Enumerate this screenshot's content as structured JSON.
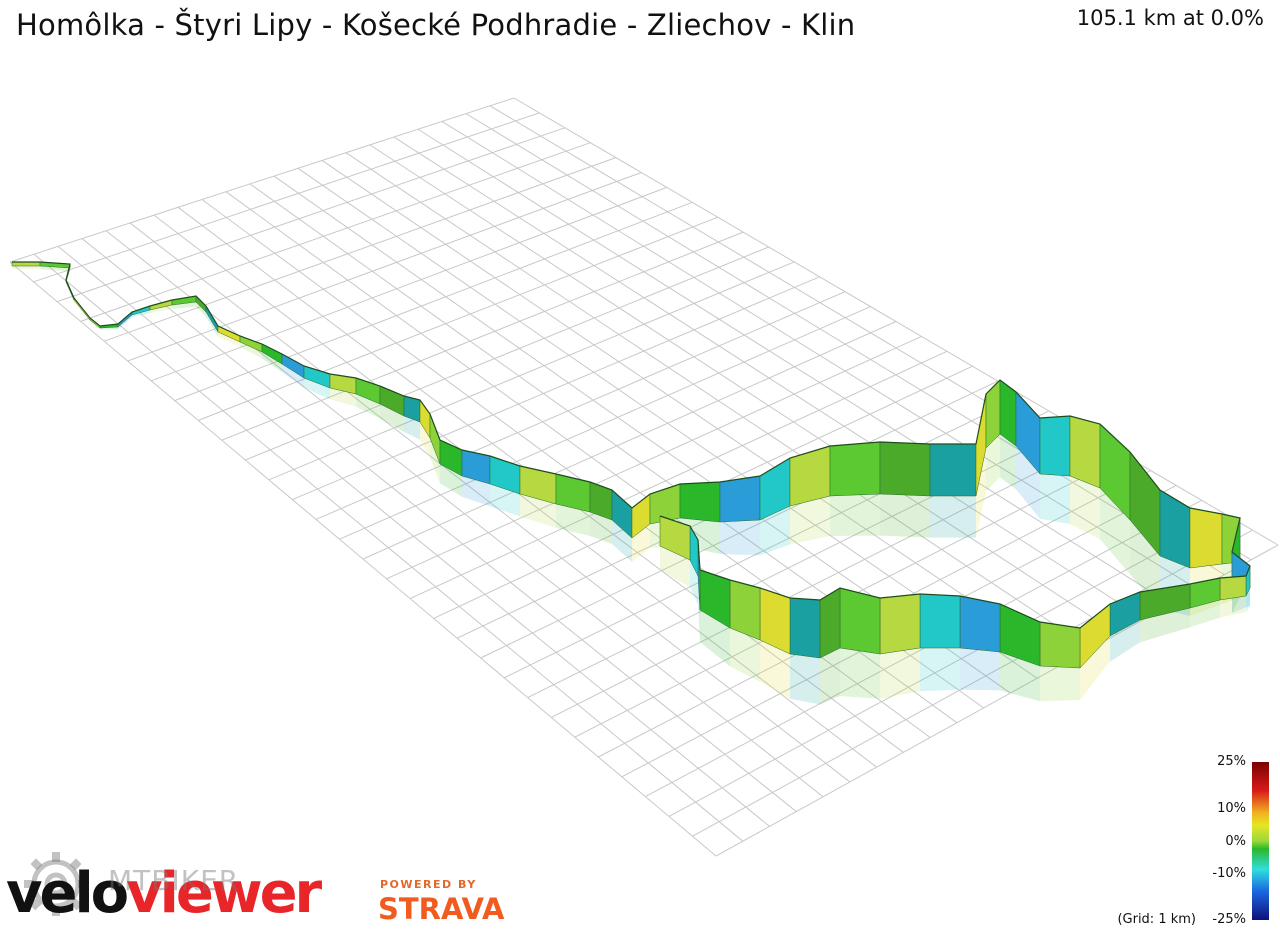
{
  "header": {
    "route_title": "Homôlka - Štyri Lipy - Košecké Podhradie - Zliechov - Klin",
    "distance_stat": "105.1 km at 0.0%"
  },
  "legend": {
    "labels": [
      "25%",
      "10%",
      "0%",
      "-10%",
      "-25%"
    ],
    "grid_note": "(Grid: 1 km)",
    "colors": [
      "#8a0000",
      "#e21a1a",
      "#f0a020",
      "#e8e020",
      "#a8d830",
      "#2ab82a",
      "#30d8d8",
      "#1a70e0",
      "#10108a"
    ]
  },
  "branding": {
    "velo": "velo",
    "viewer": "viewer",
    "watermark": "MTBIKER",
    "powered_by": "POWERED BY",
    "strava": "STRAVA"
  },
  "icons": [
    "mtbiker-gear-icon"
  ],
  "colors": {
    "grid_line": "#bdbdbd",
    "strava_orange": "#f25b1f",
    "velo_red": "#e8262a"
  }
}
